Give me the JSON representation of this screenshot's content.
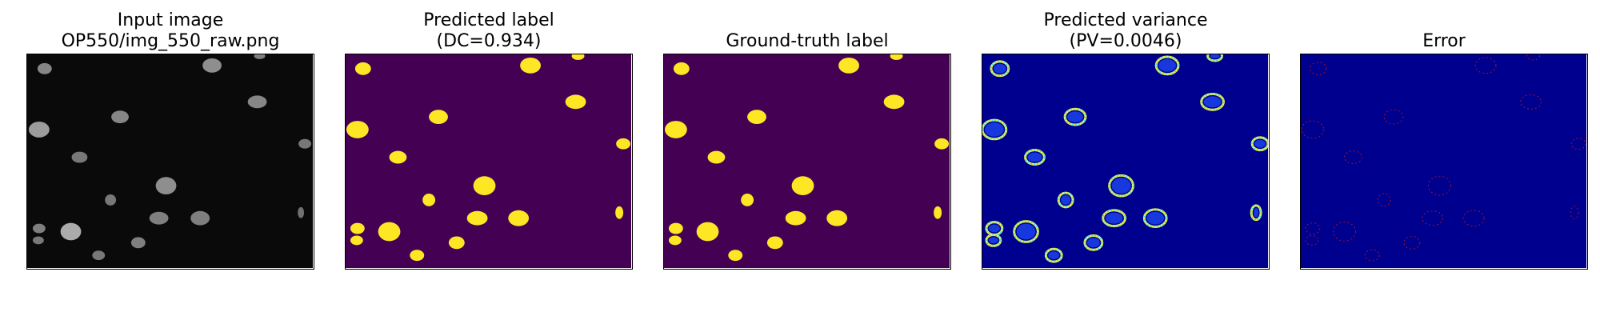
{
  "panels": [
    {
      "id": "input",
      "title_lines": [
        "Input image",
        "OP550/img_550_raw.png"
      ],
      "style": "grayscale",
      "background": "#0a0a0a"
    },
    {
      "id": "predicted-label",
      "title_lines": [
        "Predicted label",
        "(DC=0.934)"
      ],
      "style": "binary",
      "background": "#440154",
      "foreground": "#fde725"
    },
    {
      "id": "ground-truth",
      "title_lines": [
        "",
        "Ground-truth label"
      ],
      "style": "binary",
      "background": "#440154",
      "foreground": "#fde725"
    },
    {
      "id": "predicted-variance",
      "title_lines": [
        "Predicted variance",
        "(PV=0.0046)"
      ],
      "style": "jet",
      "background": "#00008f"
    },
    {
      "id": "error",
      "title_lines": [
        "",
        "Error"
      ],
      "style": "error",
      "background": "#00008f",
      "foreground": "#c81414"
    }
  ]
}
